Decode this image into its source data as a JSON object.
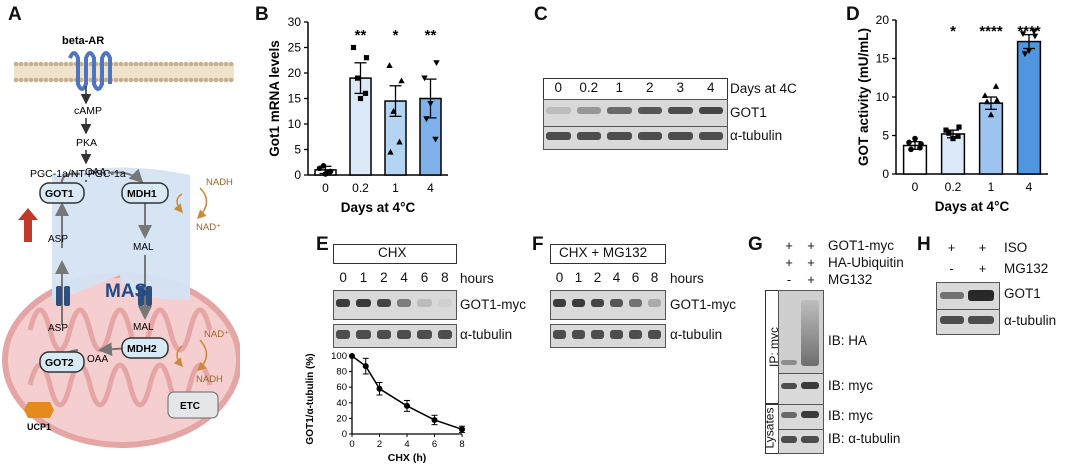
{
  "panels": {
    "a": "A",
    "b": "B",
    "c": "C",
    "d": "D",
    "e": "E",
    "f": "F",
    "g": "G",
    "h": "H"
  },
  "panel_a": {
    "receptor": "beta-AR",
    "cascade": [
      "cAMP",
      "PKA",
      "PGC-1a/NT-PGC-1a"
    ],
    "mas": "MAS",
    "enzymes": [
      "GOT1",
      "MDH1",
      "GOT2",
      "MDH2"
    ],
    "metabolites_top": [
      "OAA",
      "ASP",
      "MAL"
    ],
    "metabolites_bottom": [
      "ASP",
      "MAL",
      "OAA"
    ],
    "cofactors_top": [
      "NADH",
      "NAD⁺"
    ],
    "cofactors_bottom": [
      "NAD⁺",
      "NADH"
    ],
    "ucp1": "UCP1",
    "etc": "ETC"
  },
  "panel_b": {
    "chart_data": {
      "type": "bar",
      "categories": [
        "0",
        "0.2",
        "1",
        "4"
      ],
      "values": [
        1,
        19,
        14.5,
        15
      ],
      "errors": [
        0.7,
        3,
        3,
        3.8
      ],
      "significance": [
        "",
        "**",
        "*",
        "**"
      ],
      "ylabel": "Got1 mRNA levels",
      "xlabel": "Days at 4°C",
      "ylim": [
        0,
        30
      ],
      "yticks": [
        "0",
        "5",
        "10",
        "15",
        "20",
        "25",
        "30"
      ],
      "bar_colors": [
        "#ffffff",
        "#dbe9f8",
        "#b4d4f3",
        "#7fb2ea"
      ]
    }
  },
  "panel_c": {
    "lanes": [
      "0",
      "0.2",
      "1",
      "2",
      "3",
      "4"
    ],
    "header": "Days at 4C",
    "rows": [
      "GOT1",
      "α-tubulin"
    ]
  },
  "panel_d": {
    "chart_data": {
      "type": "bar",
      "categories": [
        "0",
        "0.2",
        "1",
        "4"
      ],
      "values": [
        3.7,
        5.2,
        9.2,
        17.2
      ],
      "errors": [
        0.5,
        0.5,
        0.8,
        0.9
      ],
      "significance": [
        "",
        "*",
        "****",
        "****"
      ],
      "ylabel": "GOT activity (mU/mL)",
      "xlabel": "Days at 4°C",
      "ylim": [
        0,
        20
      ],
      "yticks": [
        "0",
        "5",
        "10",
        "15",
        "20"
      ],
      "bar_colors": [
        "#ffffff",
        "#dbe9f8",
        "#9cc4ef",
        "#4f95e0"
      ]
    }
  },
  "panel_e": {
    "header": "CHX",
    "lanes": [
      "0",
      "1",
      "2",
      "4",
      "6",
      "8"
    ],
    "units": "hours",
    "rows": [
      "GOT1-myc",
      "α-tubulin"
    ],
    "chart_data": {
      "type": "line",
      "x": [
        0,
        1,
        2,
        4,
        6,
        8
      ],
      "y": [
        100,
        87,
        58,
        36,
        18,
        6
      ],
      "errors": [
        0,
        10,
        8,
        7,
        6,
        4
      ],
      "xlabel": "CHX (h)",
      "ylabel": "GOT1/α-tubulin (%)",
      "xlim": [
        0,
        8
      ],
      "ylim": [
        0,
        100
      ],
      "xticks": [
        "0",
        "2",
        "4",
        "6",
        "8"
      ],
      "yticks": [
        "0",
        "20",
        "40",
        "60",
        "80",
        "100"
      ]
    }
  },
  "panel_f": {
    "header": "CHX + MG132",
    "lanes": [
      "0",
      "1",
      "2",
      "4",
      "6",
      "8"
    ],
    "units": "hours",
    "rows": [
      "GOT1-myc",
      "α-tubulin"
    ]
  },
  "panel_g": {
    "conditions": [
      {
        "name": "GOT1-myc",
        "values": [
          "+",
          "+"
        ]
      },
      {
        "name": "HA-Ubiquitin",
        "values": [
          "+",
          "+"
        ]
      },
      {
        "name": "MG132",
        "values": [
          "-",
          "+"
        ]
      }
    ],
    "ip_label": "IP: myc",
    "lysates_label": "Lysates",
    "rows": [
      "IB: HA",
      "IB: myc",
      "IB: myc",
      "IB: α-tubulin"
    ]
  },
  "panel_h": {
    "conditions": [
      {
        "name": "ISO",
        "values": [
          "+",
          "+"
        ]
      },
      {
        "name": "MG132",
        "values": [
          "-",
          "+"
        ]
      }
    ],
    "rows": [
      "GOT1",
      "α-tubulin"
    ]
  }
}
